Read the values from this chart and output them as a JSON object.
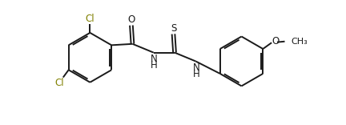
{
  "background_color": "#ffffff",
  "bond_color": "#1a1a1a",
  "atom_label_color": "#1a1a1a",
  "cl_label_color": "#808000",
  "line_width": 1.4,
  "font_size": 8.5,
  "figsize": [
    4.32,
    1.56
  ],
  "dpi": 100,
  "xlim": [
    -0.3,
    10.7
  ],
  "ylim": [
    -1.8,
    3.2
  ]
}
